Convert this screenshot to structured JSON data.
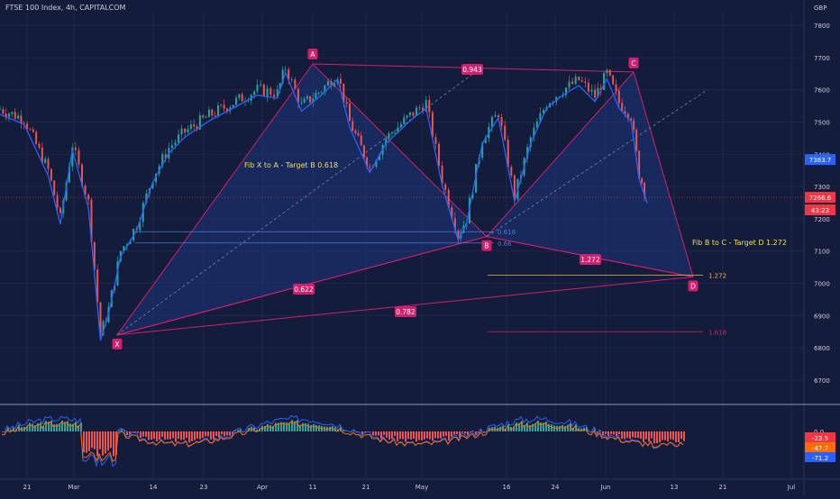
{
  "header": {
    "title": "FTSE 100 Index, 4h, CAPITALCOM"
  },
  "chart_data": {
    "type": "candlestick",
    "currency_label": "GBP",
    "price_axis": {
      "ticks": [
        7800,
        7700,
        7600,
        7500,
        7400,
        7300,
        7200,
        7100,
        7000,
        6900,
        6800,
        6700
      ],
      "range": [
        6650,
        7860
      ]
    },
    "time_axis": {
      "labels": [
        "21",
        "Mar",
        "14",
        "23",
        "Apr",
        "11",
        "21",
        "May",
        "16",
        "24",
        "Jun",
        "13",
        "21",
        "Jul"
      ]
    },
    "price_series_points": [
      [
        0.0,
        7540
      ],
      [
        0.03,
        7510
      ],
      [
        0.06,
        7350
      ],
      [
        0.075,
        7200
      ],
      [
        0.09,
        7430
      ],
      [
        0.11,
        7250
      ],
      [
        0.125,
        6840
      ],
      [
        0.135,
        6920
      ],
      [
        0.15,
        7100
      ],
      [
        0.17,
        7180
      ],
      [
        0.19,
        7330
      ],
      [
        0.21,
        7420
      ],
      [
        0.23,
        7470
      ],
      [
        0.26,
        7520
      ],
      [
        0.29,
        7560
      ],
      [
        0.32,
        7600
      ],
      [
        0.345,
        7590
      ],
      [
        0.355,
        7670
      ],
      [
        0.375,
        7550
      ],
      [
        0.4,
        7600
      ],
      [
        0.42,
        7650
      ],
      [
        0.435,
        7500
      ],
      [
        0.46,
        7360
      ],
      [
        0.48,
        7450
      ],
      [
        0.51,
        7520
      ],
      [
        0.53,
        7560
      ],
      [
        0.55,
        7320
      ],
      [
        0.57,
        7150
      ],
      [
        0.58,
        7200
      ],
      [
        0.6,
        7450
      ],
      [
        0.62,
        7530
      ],
      [
        0.64,
        7270
      ],
      [
        0.66,
        7450
      ],
      [
        0.68,
        7560
      ],
      [
        0.7,
        7600
      ],
      [
        0.72,
        7630
      ],
      [
        0.74,
        7580
      ],
      [
        0.755,
        7650
      ],
      [
        0.77,
        7560
      ],
      [
        0.785,
        7520
      ],
      [
        0.795,
        7340
      ],
      [
        0.805,
        7266
      ]
    ],
    "harmonic_pattern": {
      "type": "Bat/Gartley-style XABCD",
      "points": [
        {
          "label": "X",
          "price": 6840
        },
        {
          "label": "A",
          "price": 7680
        },
        {
          "label": "B",
          "price": 7145
        },
        {
          "label": "C",
          "price": 7655
        },
        {
          "label": "D",
          "price": 7020
        }
      ],
      "ratios": [
        {
          "label": "0.943"
        },
        {
          "label": "0.622"
        },
        {
          "label": "0.782"
        },
        {
          "label": "1.272"
        }
      ]
    },
    "fib_levels": [
      {
        "label": "0.618",
        "price": 7160
      },
      {
        "label": "0.66",
        "price": 7125
      },
      {
        "label": "1.272",
        "price": 7025
      },
      {
        "label": "1.618",
        "price": 6850
      }
    ],
    "annotations": [
      {
        "text": "Fib X to A - Target B 0.618"
      },
      {
        "text": "Fib B to C - Target D 1.272"
      }
    ],
    "price_labels": [
      {
        "text": "7383.7",
        "price": 7383.7,
        "color": "#2962ff"
      },
      {
        "text": "7266.6",
        "price": 7266.6,
        "color": "#f23645"
      },
      {
        "text": "43:23",
        "color": "#f23645"
      }
    ],
    "macd": {
      "zero_label": "0.0",
      "labels": [
        {
          "text": "-23.5",
          "color": "#f23645"
        },
        {
          "text": "-47.7",
          "color": "#ff6d00"
        },
        {
          "text": "-71.2",
          "color": "#2962ff"
        }
      ]
    }
  },
  "colors": {
    "background": "#131c3a",
    "pattern": "#d21f6e",
    "fill": "#1e3a8a",
    "annotation_text": "#f0e050",
    "grid": "#1e2749"
  }
}
